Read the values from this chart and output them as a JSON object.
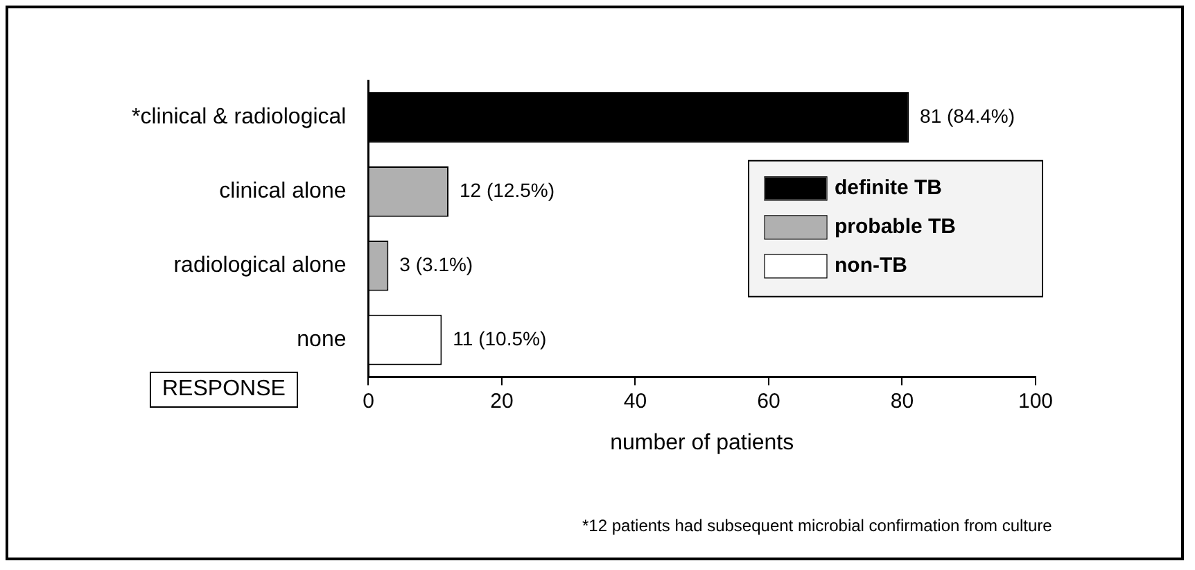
{
  "chart_data": {
    "type": "bar",
    "orientation": "horizontal",
    "stacked": true,
    "xlabel": "number of patients",
    "ylabel": "RESPONSE",
    "categories": [
      "*clinical & radiological",
      "clinical alone",
      "radiological alone",
      "none"
    ],
    "series": [
      {
        "name": "definite TB",
        "color": "#000000",
        "values": [
          81,
          null,
          null,
          null
        ],
        "value_labels": [
          "81 (84.4%)",
          null,
          null,
          null
        ]
      },
      {
        "name": "probable TB",
        "color": "#b0b0b0",
        "values": [
          null,
          12,
          3,
          null
        ],
        "value_labels": [
          null,
          "12 (12.5%)",
          "3 (3.1%)",
          null
        ]
      },
      {
        "name": "non-TB",
        "color": "#ffffff",
        "values": [
          null,
          null,
          null,
          11
        ],
        "value_labels": [
          null,
          null,
          null,
          "11 (10.5%)"
        ]
      }
    ],
    "xlim": [
      0,
      100
    ],
    "xticks": [
      0,
      20,
      40,
      60,
      80,
      100
    ],
    "grid": false,
    "legend": "right",
    "annotations": [
      "*12 patients had subsequent microbial confirmation from culture"
    ]
  }
}
